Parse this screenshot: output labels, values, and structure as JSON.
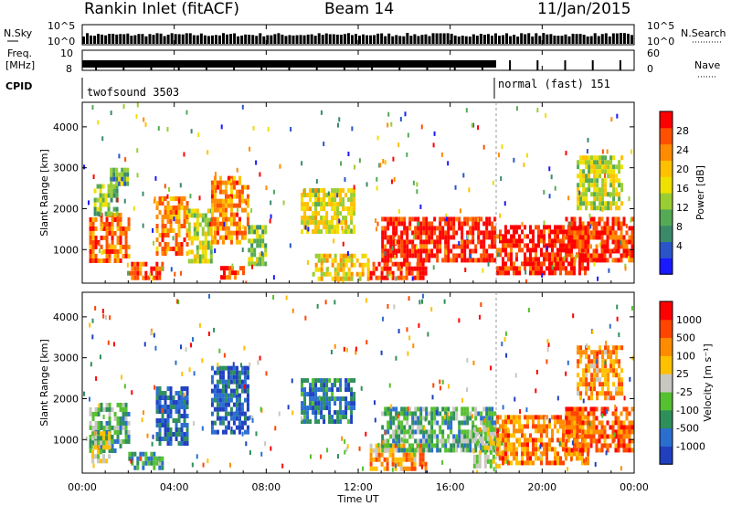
{
  "header": {
    "station": "Rankin Inlet (fitACF)",
    "beam": "Beam 14",
    "date": "11/Jan/2015"
  },
  "top_panels": {
    "nsky_label": "N.Sky",
    "nsky_ticks": [
      "10^5",
      "10^0"
    ],
    "nsearch_label": "N.Search",
    "freq_label": "Freq.",
    "freq_unit": "[MHz]",
    "freq_left_ticks": [
      "10",
      "8"
    ],
    "nave_label": "Nave",
    "nave_ticks": [
      "60",
      "0"
    ],
    "cpid_label": "CPID",
    "cpid_segments": [
      {
        "name": "twofsound 3503",
        "start_hour": 0,
        "end_hour": 18.0
      },
      {
        "name": "normal (fast) 151",
        "start_hour": 18.0,
        "end_hour": 24
      }
    ]
  },
  "chart_data": [
    {
      "type": "heatmap",
      "title": "Power",
      "xlabel": "Time UT",
      "ylabel": "Slant Range [km]",
      "xlim_hours": [
        0,
        24
      ],
      "x_tick_labels": [
        "00:00",
        "04:00",
        "08:00",
        "12:00",
        "16:00",
        "20:00",
        "00:00"
      ],
      "ylim": [
        180,
        4600
      ],
      "y_ticks": [
        1000,
        2000,
        3000,
        4000
      ],
      "colorbar": {
        "label": "Power [dB]",
        "ticks": [
          4,
          8,
          12,
          16,
          20,
          24,
          28
        ],
        "colors": [
          "#1a1aff",
          "#2a55c9",
          "#3a8a6a",
          "#55aa55",
          "#9acd32",
          "#f0e000",
          "#ffc000",
          "#ff8c00",
          "#ff5000",
          "#ff0000"
        ]
      },
      "echo_regions": [
        {
          "t0": 0.3,
          "t1": 2.0,
          "r0": 700,
          "r1": 1900,
          "level": 0.8
        },
        {
          "t0": 0.5,
          "t1": 1.5,
          "r0": 1900,
          "r1": 2600,
          "level": 0.4
        },
        {
          "t0": 1.2,
          "t1": 2.0,
          "r0": 2600,
          "r1": 3000,
          "level": 0.35
        },
        {
          "t0": 2.0,
          "t1": 3.5,
          "r0": 300,
          "r1": 700,
          "level": 0.85
        },
        {
          "t0": 3.2,
          "t1": 4.6,
          "r0": 900,
          "r1": 2300,
          "level": 0.75
        },
        {
          "t0": 4.6,
          "t1": 5.6,
          "r0": 700,
          "r1": 2000,
          "level": 0.5
        },
        {
          "t0": 5.6,
          "t1": 7.2,
          "r0": 1200,
          "r1": 2800,
          "level": 0.75
        },
        {
          "t0": 6.0,
          "t1": 7.0,
          "r0": 300,
          "r1": 600,
          "level": 0.85
        },
        {
          "t0": 7.2,
          "t1": 8.0,
          "r0": 600,
          "r1": 1600,
          "level": 0.4
        },
        {
          "t0": 9.5,
          "t1": 11.8,
          "r0": 1400,
          "r1": 2500,
          "level": 0.55
        },
        {
          "t0": 10.0,
          "t1": 12.5,
          "r0": 300,
          "r1": 900,
          "level": 0.6
        },
        {
          "t0": 12.5,
          "t1": 15.0,
          "r0": 300,
          "r1": 700,
          "level": 0.9
        },
        {
          "t0": 13.0,
          "t1": 18.0,
          "r0": 700,
          "r1": 1800,
          "level": 0.95
        },
        {
          "t0": 18.0,
          "t1": 22.0,
          "r0": 400,
          "r1": 1600,
          "level": 0.95
        },
        {
          "t0": 21.0,
          "t1": 24.0,
          "r0": 700,
          "r1": 1800,
          "level": 0.9
        },
        {
          "t0": 21.5,
          "t1": 23.5,
          "r0": 2000,
          "r1": 3300,
          "level": 0.5
        }
      ]
    },
    {
      "type": "heatmap",
      "title": "Velocity",
      "xlabel": "Time UT",
      "ylabel": "Slant Range [km]",
      "xlim_hours": [
        0,
        24
      ],
      "x_tick_labels": [
        "00:00",
        "04:00",
        "08:00",
        "12:00",
        "16:00",
        "20:00",
        "00:00"
      ],
      "ylim": [
        180,
        4600
      ],
      "y_ticks": [
        1000,
        2000,
        3000,
        4000
      ],
      "colorbar": {
        "label": "Velocity [m s⁻¹]",
        "ticks": [
          "1000",
          "500",
          "100",
          "25",
          "-25",
          "-100",
          "-500",
          "-1000"
        ],
        "colors": [
          "#2040c0",
          "#2a6fd0",
          "#2e8f5a",
          "#55c030",
          "#c8c8c0",
          "#ffc000",
          "#ff8c00",
          "#ff4500",
          "#ff0000"
        ]
      },
      "echo_regions": [
        {
          "t0": 0.3,
          "t1": 2.0,
          "r0": 700,
          "r1": 1900,
          "level": 0.35
        },
        {
          "t0": 0.4,
          "t1": 1.2,
          "r0": 500,
          "r1": 1200,
          "level": 0.5
        },
        {
          "t0": 2.0,
          "t1": 3.5,
          "r0": 300,
          "r1": 700,
          "level": 0.3
        },
        {
          "t0": 3.2,
          "t1": 4.6,
          "r0": 900,
          "r1": 2300,
          "level": 0.15
        },
        {
          "t0": 5.6,
          "t1": 7.2,
          "r0": 1200,
          "r1": 2800,
          "level": 0.15
        },
        {
          "t0": 9.5,
          "t1": 11.8,
          "r0": 1400,
          "r1": 2500,
          "level": 0.2
        },
        {
          "t0": 12.5,
          "t1": 15.0,
          "r0": 300,
          "r1": 900,
          "level": 0.7
        },
        {
          "t0": 13.0,
          "t1": 18.0,
          "r0": 700,
          "r1": 1800,
          "level": 0.35
        },
        {
          "t0": 17.0,
          "t1": 18.5,
          "r0": 400,
          "r1": 1300,
          "level": 0.5
        },
        {
          "t0": 18.0,
          "t1": 22.0,
          "r0": 400,
          "r1": 1600,
          "level": 0.75
        },
        {
          "t0": 21.0,
          "t1": 24.0,
          "r0": 700,
          "r1": 1800,
          "level": 0.8
        },
        {
          "t0": 21.5,
          "t1": 23.5,
          "r0": 2000,
          "r1": 3300,
          "level": 0.7
        }
      ]
    }
  ]
}
